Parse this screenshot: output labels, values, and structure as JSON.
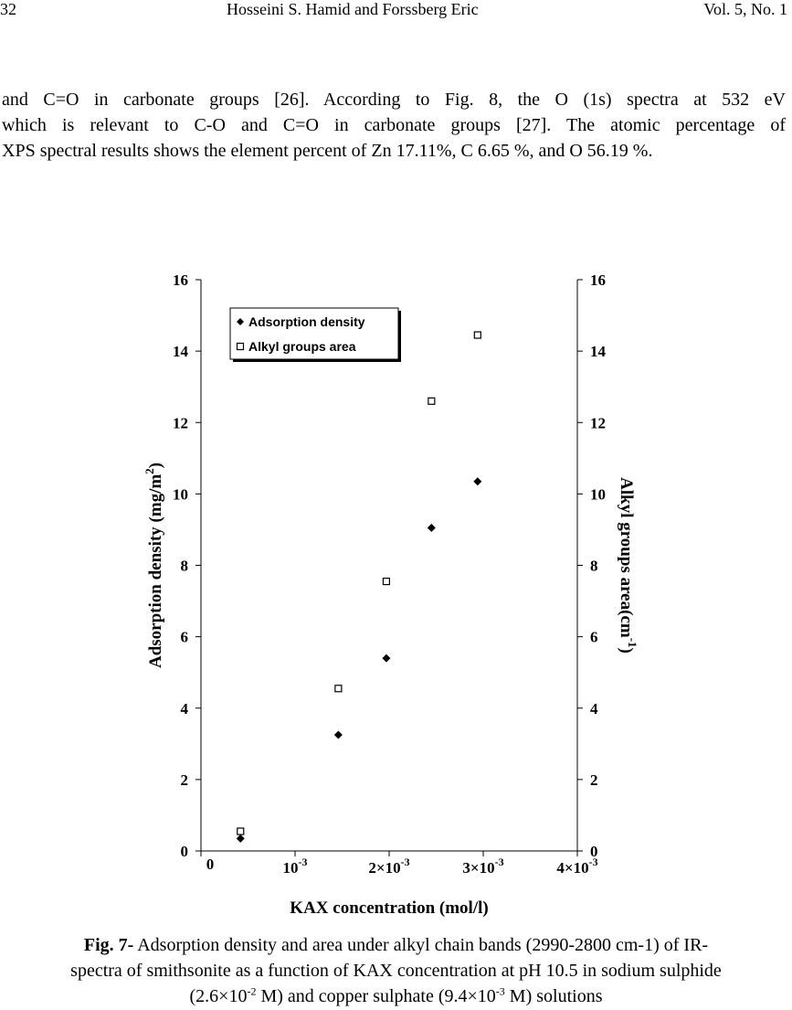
{
  "header": {
    "page_number": "32",
    "authors": "Hosseini S. Hamid and Forssberg Eric",
    "volume": "Vol. 5, No. 1"
  },
  "paragraph": {
    "line1": "and C=O in carbonate groups [26]. According to Fig. 8, the O (1s) spectra at 532 eV",
    "line2": "which is relevant to C-O and C=O in carbonate groups [27]. The atomic percentage of",
    "line3": "XPS spectral results shows the element percent of Zn 17.11%, C 6.65 %, and O 56.19 %."
  },
  "chart_data": {
    "type": "scatter",
    "xlabel": "KAX concentration (mol/l)",
    "ylabel_left": "Adsorption density (mg/m",
    "ylabel_left_sup": "2",
    "ylabel_left_end": ")",
    "ylabel_right": "Alkyl groups area(cm",
    "ylabel_right_sup": "-1",
    "ylabel_right_end": ")",
    "xlim": [
      0,
      0.004
    ],
    "ylim": [
      0,
      16
    ],
    "y_ticks": [
      "0",
      "2",
      "4",
      "6",
      "8",
      "10",
      "12",
      "14",
      "16"
    ],
    "x_ticks": [
      {
        "value": 0,
        "base": "0",
        "sup": ""
      },
      {
        "value": 0.001,
        "base": "10",
        "sup": "-3"
      },
      {
        "value": 0.002,
        "base": "2×10",
        "sup": "-3"
      },
      {
        "value": 0.003,
        "base": "3×10",
        "sup": "-3"
      },
      {
        "value": 0.004,
        "base": "4×10",
        "sup": "-3"
      }
    ],
    "legend_position": "top-left",
    "series": [
      {
        "name": "Adsorption density",
        "marker": "filled-diamond",
        "x": [
          0.00042,
          0.00146,
          0.00197,
          0.00245,
          0.00294
        ],
        "y": [
          0.35,
          3.25,
          5.4,
          9.05,
          10.35
        ]
      },
      {
        "name": "Alkyl groups area",
        "marker": "open-square",
        "x": [
          0.00042,
          0.00146,
          0.00197,
          0.00245,
          0.00294
        ],
        "y": [
          0.55,
          4.55,
          7.55,
          12.6,
          14.45
        ]
      }
    ]
  },
  "caption": {
    "label": "Fig. 7-",
    "line1": " Adsorption density and area under alkyl chain bands (2990-2800 cm-1) of IR-",
    "line2": "spectra of smithsonite as a function of KAX concentration at pH 10.5 in sodium sulphide",
    "line3_a": "(2.6×10",
    "line3_sup1": "-2",
    "line3_b": " M) and copper sulphate (9.4×10",
    "line3_sup2": "-3",
    "line3_c": " M) solutions"
  }
}
